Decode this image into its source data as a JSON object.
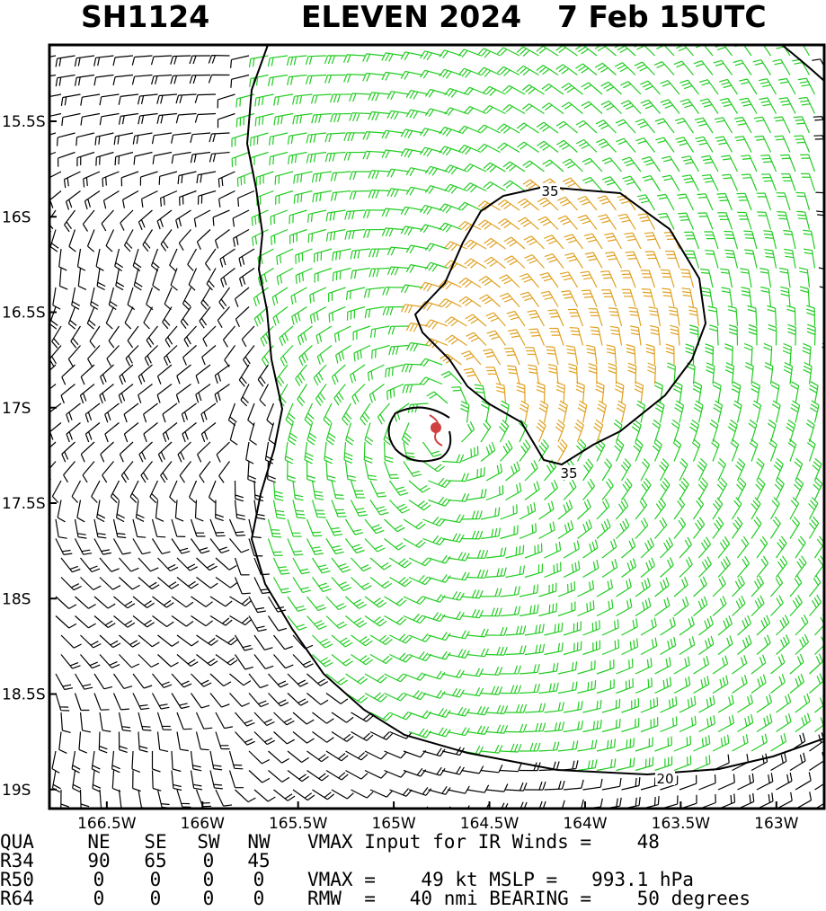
{
  "header": {
    "storm_id": "SH1124",
    "storm_name": "ELEVEN 2024",
    "time": "7 Feb 15UTC"
  },
  "map": {
    "lon_range": [
      -166.8,
      -162.75
    ],
    "lat_range": [
      -15.1,
      -19.1
    ],
    "lon_ticks": [
      {
        "value": -166.5,
        "label": "166.5W"
      },
      {
        "value": -166,
        "label": "166W"
      },
      {
        "value": -165.5,
        "label": "165.5W"
      },
      {
        "value": -165,
        "label": "165W"
      },
      {
        "value": -164.5,
        "label": "164.5W"
      },
      {
        "value": -164,
        "label": "164W"
      },
      {
        "value": -163.5,
        "label": "163.5W"
      },
      {
        "value": -163,
        "label": "163W"
      }
    ],
    "lat_ticks": [
      {
        "value": -15.5,
        "label": "15.5S"
      },
      {
        "value": -16,
        "label": "16S"
      },
      {
        "value": -16.5,
        "label": "16.5S"
      },
      {
        "value": -17,
        "label": "17S"
      },
      {
        "value": -17.5,
        "label": "17.5S"
      },
      {
        "value": -18,
        "label": "18S"
      },
      {
        "value": -18.5,
        "label": "18.5S"
      },
      {
        "value": -19,
        "label": "19S"
      }
    ],
    "contour_labels": [
      "35",
      "35",
      "20"
    ]
  },
  "table": {
    "header": [
      "QUA",
      "NE",
      "SE",
      "SW",
      "NW"
    ],
    "rows": [
      [
        "R34",
        90,
        65,
        0,
        45
      ],
      [
        "R50",
        0,
        0,
        0,
        0
      ],
      [
        "R64",
        0,
        0,
        0,
        0
      ]
    ]
  },
  "info": [
    "VMAX Input for IR Winds =    48",
    "VMAX =    49 kt MSLP =   993.1 hPa",
    "RMW  =   40 nmi BEARING =    50 degrees"
  ]
}
